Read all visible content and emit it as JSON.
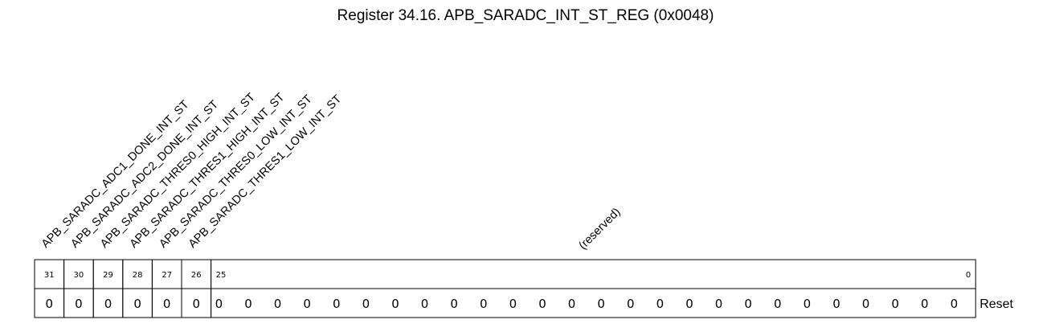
{
  "title": "Register 34.16. APB_SARADC_INT_ST_REG (0x0048)",
  "fields": [
    {
      "name": "APB_SARADC_ADC1_DONE_INT_ST",
      "msb": 31,
      "lsb": 31,
      "reset": "0"
    },
    {
      "name": "APB_SARADC_ADC2_DONE_INT_ST",
      "msb": 30,
      "lsb": 30,
      "reset": "0"
    },
    {
      "name": "APB_SARADC_THRES0_HIGH_INT_ST",
      "msb": 29,
      "lsb": 29,
      "reset": "0"
    },
    {
      "name": "APB_SARADC_THRES1_HIGH_INT_ST",
      "msb": 28,
      "lsb": 28,
      "reset": "0"
    },
    {
      "name": "APB_SARADC_THRES0_LOW_INT_ST",
      "msb": 27,
      "lsb": 27,
      "reset": "0"
    },
    {
      "name": "APB_SARADC_THRES1_LOW_INT_ST",
      "msb": 26,
      "lsb": 26,
      "reset": "0"
    },
    {
      "name": "(reserved)",
      "msb": 25,
      "lsb": 0,
      "reset": "0"
    }
  ],
  "reset_label": "Reset"
}
